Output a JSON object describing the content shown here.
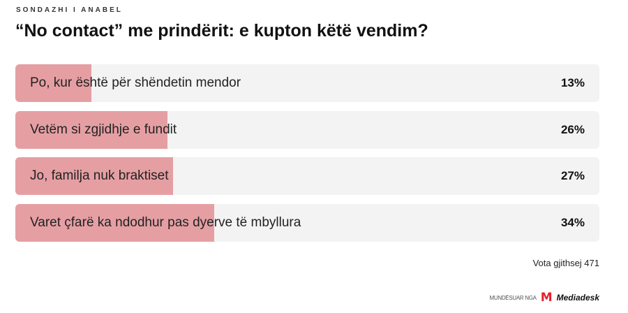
{
  "poll": {
    "kicker": "SONDAZHI I ANABEL",
    "title": "“No contact” me prindërit: e kupton këtë vendim?",
    "fill_color": "#e59fa3",
    "options": [
      {
        "label": "Po, kur është për shëndetin mendor",
        "percent_label": "13%",
        "percent": 13
      },
      {
        "label": "Vetëm si zgjidhje e fundit",
        "percent_label": "26%",
        "percent": 26
      },
      {
        "label": "Jo, familja nuk braktiset",
        "percent_label": "27%",
        "percent": 27
      },
      {
        "label": "Varet çfarë ka ndodhur pas dyerve të mbyllura",
        "percent_label": "34%",
        "percent": 34
      }
    ],
    "total": "Vota gjithsej 471"
  },
  "footer": {
    "powered_by": "MUNDËSUAR NGA",
    "logo_letter": "M",
    "brand": "Mediadesk",
    "brand_color": "#e5202e"
  }
}
